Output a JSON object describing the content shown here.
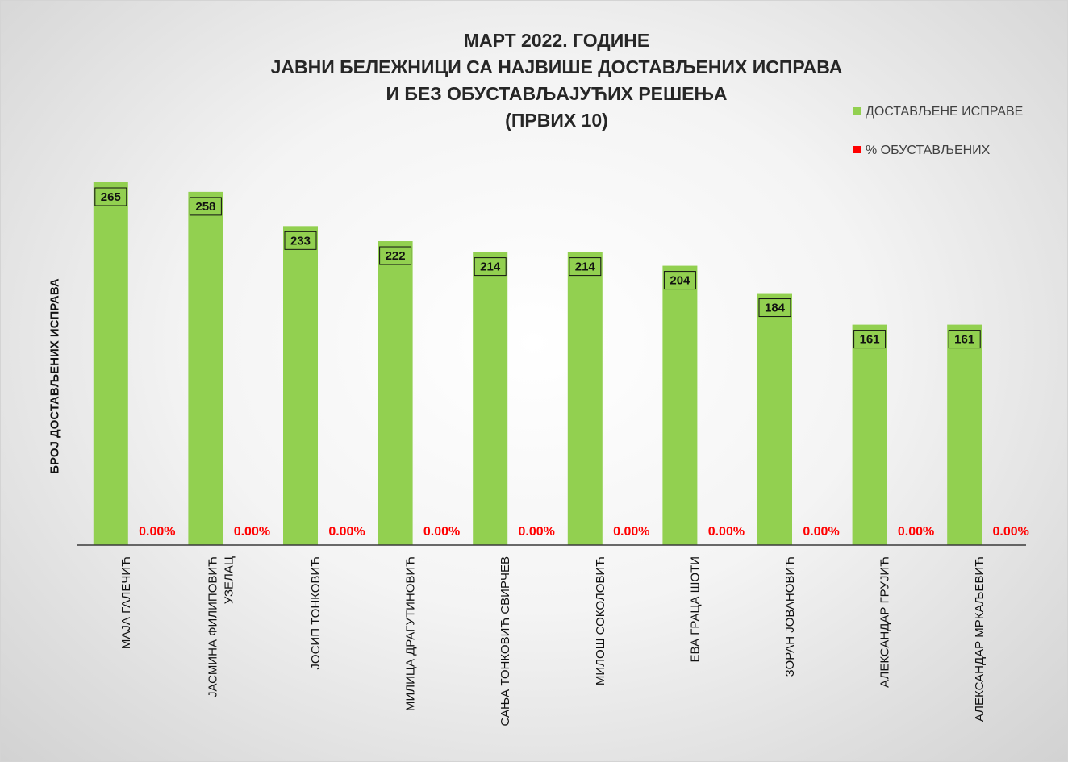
{
  "title_lines": [
    "МАРТ 2022. ГОДИНЕ",
    "ЈАВНИ БЕЛЕЖНИЦИ СА НАЈВИШЕ ДОСТАВЉЕНИХ ИСПРАВА",
    "И БЕЗ ОБУСТАВЉАЈУЋИХ РЕШЕЊА",
    "(ПРВИХ 10)"
  ],
  "legend": [
    {
      "label": "ДОСТАВЉЕНЕ ИСПРАВЕ",
      "color": "#92d050"
    },
    {
      "label": "% ОБУСТАВЉЕНИХ",
      "color": "#ff0000"
    }
  ],
  "chart_data": {
    "type": "bar",
    "title": "МАРТ 2022. ГОДИНЕ ЈАВНИ БЕЛЕЖНИЦИ СА НАЈВИШЕ ДОСТАВЉЕНИХ ИСПРАВА И БЕЗ ОБУСТАВЉАЈУЋИХ РЕШЕЊА (ПРВИХ 10)",
    "xlabel": "",
    "ylabel": "БРОЈ ДОСТАВЉЕНИХ ИСПРАВА",
    "ylim": [
      0,
      265
    ],
    "grid": false,
    "legend_position": "top-right",
    "categories": [
      [
        "МАЈА ГАЛЕЧИЋ"
      ],
      [
        "ЈАСМИНА ФИЛИПОВИЋ",
        "УЗЕЛАЦ"
      ],
      [
        "ЈОСИП ТОНКОВИЋ"
      ],
      [
        "МИЛИЦА ДРАГУТИНОВИЋ"
      ],
      [
        "САЊА ТОНКОВИЋ СВИРЧЕВ"
      ],
      [
        "МИЛОШ СОКОЛОВИЋ"
      ],
      [
        "ЕВА ГРАЦА ШОТИ"
      ],
      [
        "ЗОРАН ЈОВАНОВИЋ"
      ],
      [
        "АЛЕКСАНДАР ГРУЈИЋ"
      ],
      [
        "АЛЕКСАНДАР МРКАЉЕВИЋ"
      ]
    ],
    "series": [
      {
        "name": "ДОСТАВЉЕНЕ ИСПРАВЕ",
        "color": "#92d050",
        "values": [
          265,
          258,
          233,
          222,
          214,
          214,
          204,
          184,
          161,
          161
        ],
        "labels": [
          "265",
          "258",
          "233",
          "222",
          "214",
          "214",
          "204",
          "184",
          "161",
          "161"
        ]
      },
      {
        "name": "% ОБУСТАВЉЕНИХ",
        "color": "#ff0000",
        "values": [
          0,
          0,
          0,
          0,
          0,
          0,
          0,
          0,
          0,
          0
        ],
        "labels": [
          "0.00%",
          "0.00%",
          "0.00%",
          "0.00%",
          "0.00%",
          "0.00%",
          "0.00%",
          "0.00%",
          "0.00%",
          "0.00%"
        ]
      }
    ]
  }
}
